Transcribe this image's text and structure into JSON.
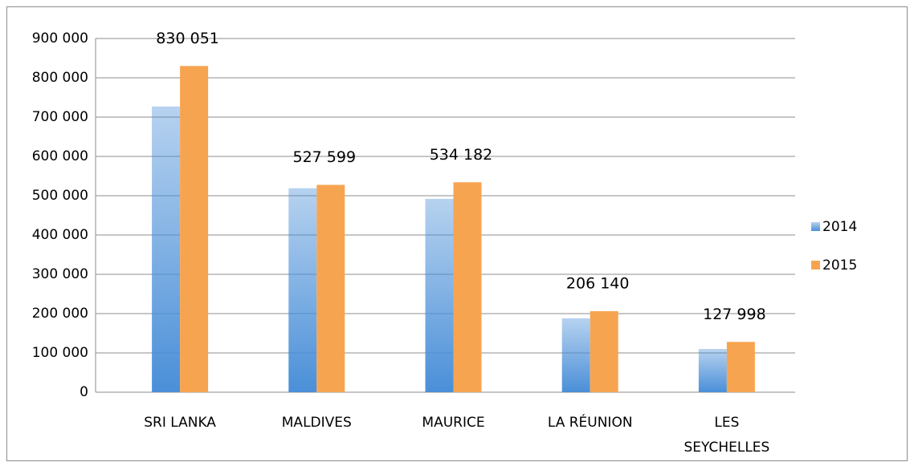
{
  "chart_data": {
    "type": "bar",
    "categories": [
      "SRI LANKA",
      "MALDIVES",
      "MAURICE",
      "LA RÉUNION",
      "LES SEYCHELLES"
    ],
    "series": [
      {
        "name": "2014",
        "color": "#4a8fd8",
        "values": [
          727000,
          519000,
          492000,
          188000,
          110000
        ]
      },
      {
        "name": "2015",
        "color": "#f7a451",
        "values": [
          830051,
          527599,
          534182,
          206140,
          127998
        ],
        "value_labels": [
          "830 051",
          "527 599",
          "534 182",
          "206 140",
          "127 998"
        ]
      }
    ],
    "ylim": [
      0,
      900000
    ],
    "yticks": [
      0,
      {
        "value": 100000,
        "label": "100 000"
      },
      {
        "value": 200000,
        "label": "200 000"
      },
      {
        "value": 300000,
        "label": "300 000"
      },
      {
        "value": 400000,
        "label": "400 000"
      },
      {
        "value": 500000,
        "label": "500 000"
      },
      {
        "value": 600000,
        "label": "600 000"
      },
      {
        "value": 700000,
        "label": "700 000"
      },
      {
        "value": 800000,
        "label": "800 000"
      },
      {
        "value": 900000,
        "label": "900 000"
      }
    ],
    "grid": true,
    "legend": "right"
  }
}
